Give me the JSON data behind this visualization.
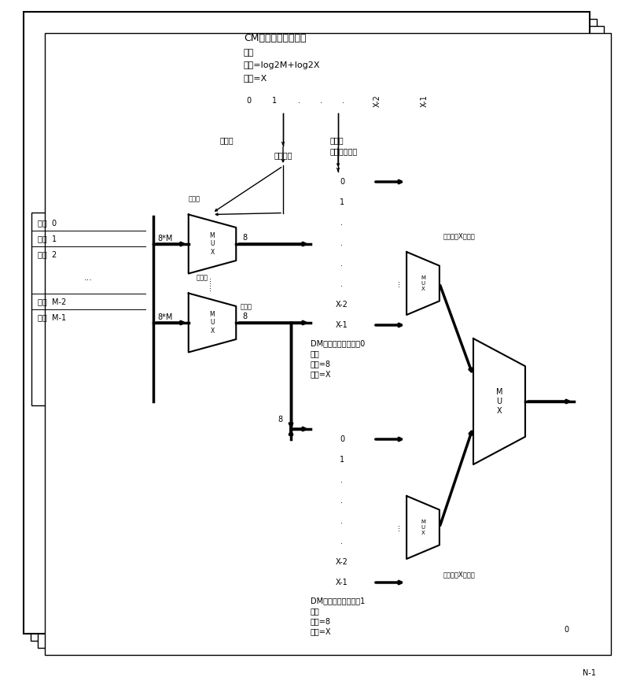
{
  "bg_color": "#ffffff",
  "figsize": [
    8.0,
    8.74
  ],
  "cm_title": "CM（配置存储单元）",
  "cm_line2": "大小",
  "cm_line3": "宽度=log2M+log2X",
  "cm_line4": "深度=X",
  "cm_cells": [
    "0",
    "1",
    ".",
    ".",
    ".",
    "X-2",
    "X-1"
  ],
  "dm0_title": "DM（数据存储单元）0",
  "dm0_line2": "大小",
  "dm0_line3": "宽度=8",
  "dm0_line4": "深度=X",
  "dm1_title": "DM（数据存储单元）1",
  "dm1_line2": "大小",
  "dm1_line3": "宽度=8",
  "dm1_line4": "深度=X",
  "dm_cells": [
    "0",
    "1",
    ".",
    ".",
    ".",
    ".",
    "X-2",
    "X-1"
  ],
  "ch_labels": [
    "通道  0",
    "通道  1",
    "通道  2",
    "通道  M-2",
    "通道  M-1"
  ],
  "lbl_8M": "8*M",
  "lbl_8": "8",
  "lbl_channel_no": "通道号",
  "lbl_select": "选择通道",
  "lbl_timeslot": "时隙号",
  "lbl_control": "控制写入时刻",
  "lbl_seq_out": "顺序输出X个时隙",
  "lbl_0": "0",
  "lbl_N1": "N-1",
  "lbl_dots_vert": "...",
  "lbl_mux": "M\nU\nX"
}
